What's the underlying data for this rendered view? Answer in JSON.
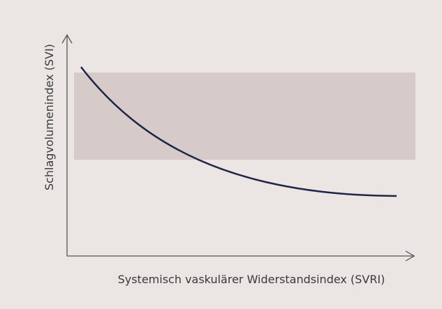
{
  "axes": {
    "x_label": "Systemisch vaskulärer Widerstandsindex (SVRI)",
    "y_label": "Schlagvolumenindex (SVI)"
  }
}
